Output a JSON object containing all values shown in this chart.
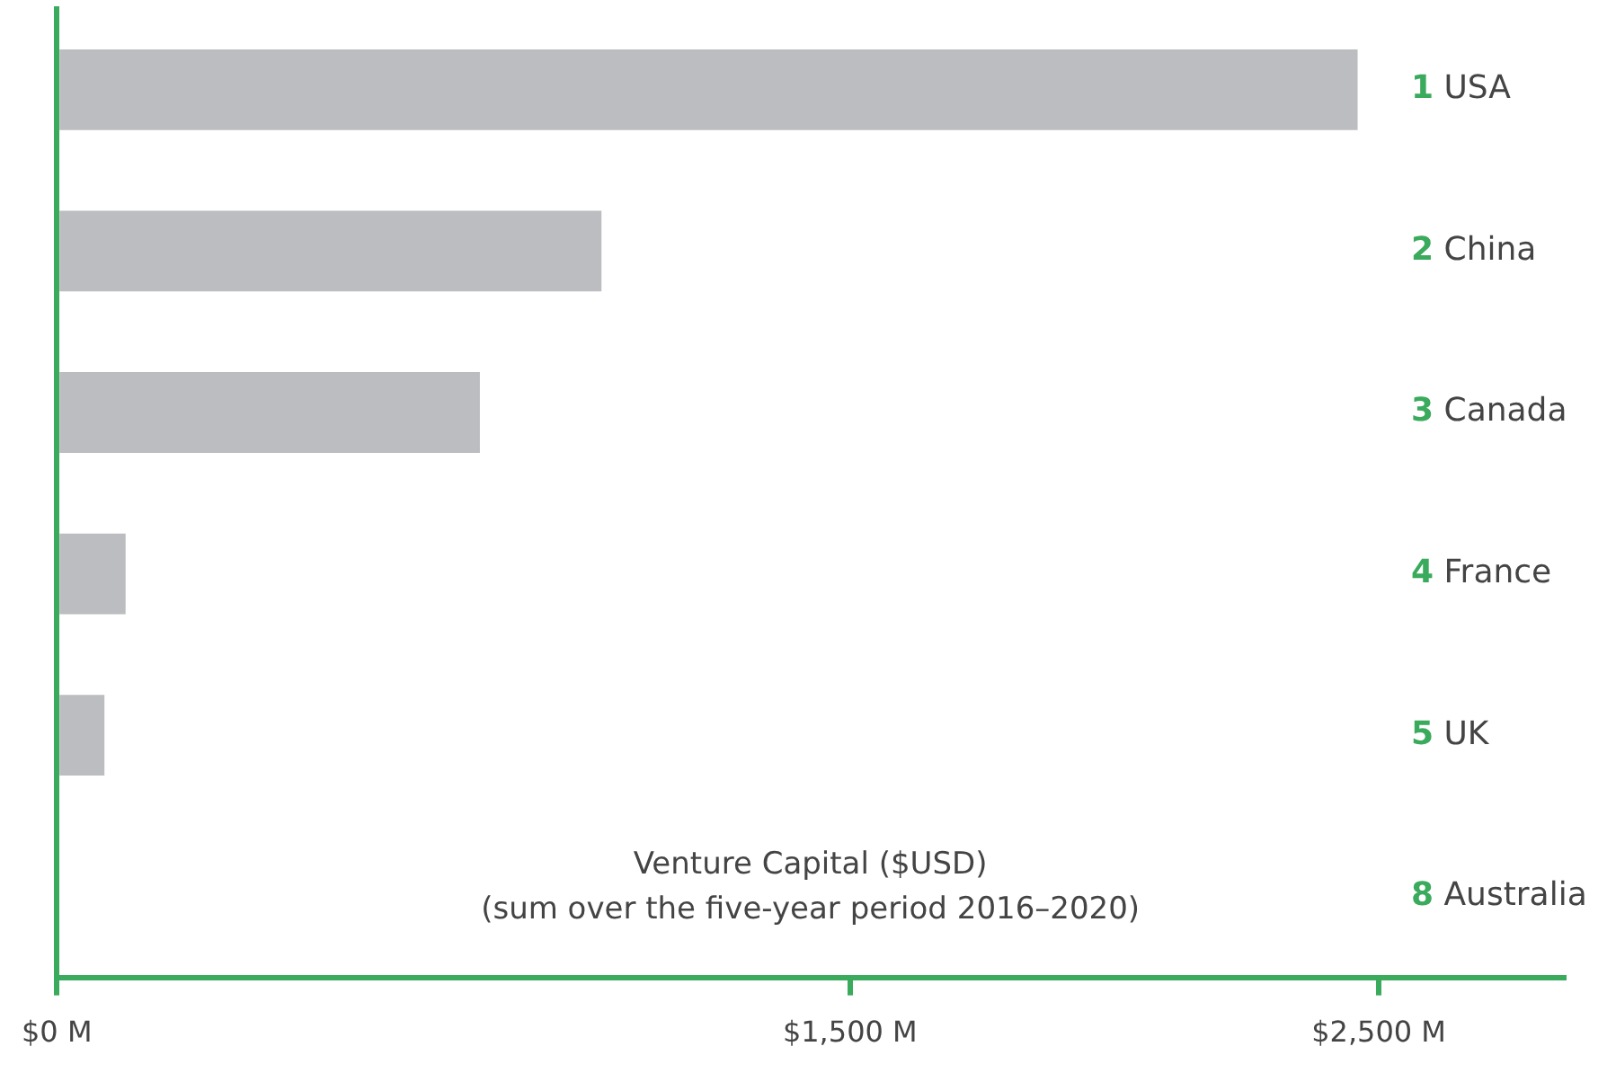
{
  "chart_data": {
    "type": "bar",
    "orientation": "horizontal",
    "categories": [
      "1 USA",
      "2 China",
      "3 Canada",
      "4 France",
      "5 UK",
      "8 Australia"
    ],
    "values": [
      2460,
      1030,
      800,
      130,
      90,
      null
    ],
    "color": "#bcbdc0",
    "xlabel": "Venture Capital ($USD)",
    "annotations": [
      "(sum over the five-year period 2016–2020)"
    ],
    "xlim": [
      0,
      2850
    ],
    "xticks": [
      {
        "value": 0,
        "label": "$0 M"
      },
      {
        "value": 1500,
        "label": "$1,500 M"
      },
      {
        "value": 2500,
        "label": "$2,500 M"
      }
    ],
    "grid": false,
    "legend": false
  }
}
